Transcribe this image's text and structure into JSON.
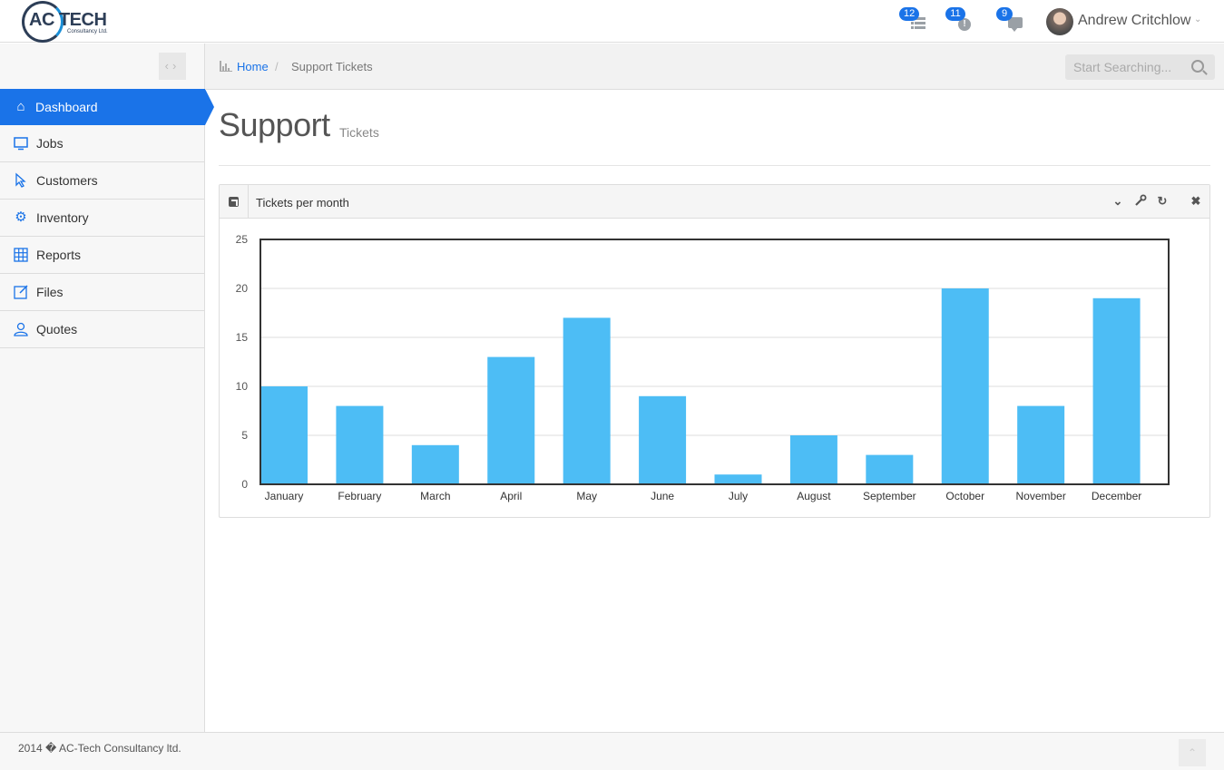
{
  "brand": {
    "logo_text": "AC TECH",
    "logo_subtext": "Consultancy Ltd."
  },
  "header": {
    "notifications": [
      {
        "id": "tasks",
        "count": "12",
        "icon": "list-icon"
      },
      {
        "id": "alerts",
        "count": "11",
        "icon": "alert-icon"
      },
      {
        "id": "messages",
        "count": "9",
        "icon": "chat-icon"
      }
    ],
    "user": {
      "name": "Andrew Critchlow"
    }
  },
  "sidebar": {
    "items": [
      {
        "label": "Dashboard",
        "icon": "home-icon",
        "active": true
      },
      {
        "label": "Jobs",
        "icon": "monitor-icon"
      },
      {
        "label": "Customers",
        "icon": "cursor-icon"
      },
      {
        "label": "Inventory",
        "icon": "gear-icon"
      },
      {
        "label": "Reports",
        "icon": "grid-icon"
      },
      {
        "label": "Files",
        "icon": "edit-icon"
      },
      {
        "label": "Quotes",
        "icon": "user-icon"
      }
    ]
  },
  "breadcrumb": {
    "home": "Home",
    "separator": "/",
    "current": "Support Tickets"
  },
  "search": {
    "placeholder": "Start Searching..."
  },
  "page": {
    "title": "Support",
    "subtitle": "Tickets"
  },
  "widget": {
    "title": "Tickets per month"
  },
  "colors": {
    "accent": "#1a73e8",
    "bar": "#4dbdf5"
  },
  "chart_data": {
    "type": "bar",
    "title": "Tickets per month",
    "categories": [
      "January",
      "February",
      "March",
      "April",
      "May",
      "June",
      "July",
      "August",
      "September",
      "October",
      "November",
      "December"
    ],
    "values": [
      10,
      8,
      4,
      13,
      17,
      9,
      1,
      5,
      3,
      20,
      8,
      19
    ],
    "ylim": [
      0,
      25
    ],
    "yticks": [
      0,
      5,
      10,
      15,
      20,
      25
    ],
    "grid": true,
    "legend": "none"
  },
  "footer": {
    "text": "2014 � AC-Tech Consultancy ltd."
  }
}
